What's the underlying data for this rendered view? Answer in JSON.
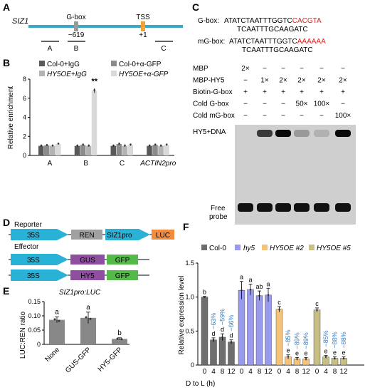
{
  "panel_letters": {
    "a": "A",
    "b": "B",
    "c": "C",
    "d": "D",
    "e": "E",
    "f": "F"
  },
  "panel_a": {
    "gene": "SIZ1",
    "gbox_label": "G-box",
    "gbox_pos": "−619",
    "tss_label": "TSS",
    "tss_pos": "+1",
    "regions": [
      "A",
      "B",
      "C"
    ]
  },
  "panel_b": {
    "ylabel": "Relative enrichment",
    "legend": [
      "Col-0+IgG",
      "Col-0+α-GFP",
      "HY5OE+IgG",
      "HY5OE+α-GFP"
    ],
    "significance": "**",
    "colors": [
      "#595959",
      "#8c8c8c",
      "#b3b3b3",
      "#d9d9d9"
    ],
    "chart_data": {
      "type": "bar",
      "categories": [
        "A",
        "B",
        "C",
        "ACTIN2pro"
      ],
      "series": [
        {
          "name": "Col-0+IgG",
          "values": [
            1.0,
            1.0,
            1.0,
            1.0
          ]
        },
        {
          "name": "Col-0+α-GFP",
          "values": [
            1.05,
            1.1,
            1.2,
            1.1
          ]
        },
        {
          "name": "HY5OE+IgG",
          "values": [
            1.0,
            1.0,
            1.0,
            1.0
          ]
        },
        {
          "name": "HY5OE+α-GFP",
          "values": [
            1.2,
            6.8,
            1.1,
            1.1
          ]
        }
      ],
      "ylim": [
        0,
        8
      ],
      "yticks": [
        0,
        2,
        4,
        6,
        8
      ]
    }
  },
  "panel_c": {
    "gbox_label": "G-box:",
    "gbox_top_black": "ATATCTAATTTGGTC",
    "gbox_top_red": "CACGTA",
    "gbox_bottom": "TCAATTTGCAAGATC",
    "mgbox_label": "mG-box:",
    "mgbox_top_black": "ATATCTAATTTGGTC",
    "mgbox_top_red": "AAAAAA",
    "mgbox_bottom": "TCAATTTGCAAGATC",
    "rows": [
      {
        "label": "MBP",
        "cells": [
          "2×",
          "−",
          "−",
          "−",
          "−",
          "−"
        ]
      },
      {
        "label": "MBP-HY5",
        "cells": [
          "−",
          "1×",
          "2×",
          "2×",
          "2×",
          "2×"
        ]
      },
      {
        "label": "Biotin-G-box",
        "cells": [
          "+",
          "+",
          "+",
          "+",
          "+",
          "+"
        ]
      },
      {
        "label": "Cold G-box",
        "cells": [
          "−",
          "−",
          "−",
          "50×",
          "100×",
          "−"
        ]
      },
      {
        "label": "Cold mG-box",
        "cells": [
          "−",
          "−",
          "−",
          "−",
          "−",
          "100×"
        ]
      }
    ],
    "hy5_dna": "HY5+DNA",
    "free_probe_1": "Free",
    "free_probe_2": "probe"
  },
  "panel_d": {
    "reporter_label": "Reporter",
    "effector_label": "Effector",
    "reporter": [
      "35S",
      "REN",
      "SIZ1pro",
      "LUC"
    ],
    "effector1": [
      "35S",
      "GUS",
      "GFP"
    ],
    "effector2": [
      "35S",
      "HY5",
      "GFP"
    ]
  },
  "panel_e": {
    "title": "SIZ1pro:LUC",
    "ylabel": "LUC:REN ratio",
    "letters": [
      "a",
      "a",
      "b"
    ],
    "chart_data": {
      "type": "bar",
      "categories": [
        "None",
        "GUS-GFP",
        "HY5-GFP"
      ],
      "values": [
        0.086,
        0.093,
        0.019
      ],
      "errors": [
        0.01,
        0.02,
        0.004
      ],
      "ylim": [
        0,
        0.15
      ],
      "yticks": [
        0,
        0.05,
        0.1,
        0.15
      ]
    }
  },
  "panel_f": {
    "ylabel": "Relative expression level",
    "xlabel": "D to L (h)",
    "legend": [
      "Col-0",
      "hy5",
      "HY5OE #2",
      "HY5OE #5"
    ],
    "colors": [
      "#6e6e6e",
      "#9999ee",
      "#f5c27a",
      "#c7bf84"
    ],
    "chart_data": {
      "type": "bar",
      "categories": [
        "0",
        "4",
        "8",
        "12"
      ],
      "series": [
        {
          "name": "Col-0",
          "values": [
            1.0,
            0.37,
            0.41,
            0.34
          ],
          "errors": [
            0.01,
            0.03,
            0.05,
            0.03
          ],
          "letters": [
            "b",
            "d",
            "d",
            "d"
          ],
          "percent": [
            "",
            "−63%",
            "−59%",
            "−66%"
          ]
        },
        {
          "name": "hy5",
          "values": [
            1.1,
            1.11,
            1.02,
            1.03
          ],
          "errors": [
            0.13,
            0.08,
            0.07,
            0.1
          ],
          "letters": [
            "a",
            "a",
            "ab",
            "a"
          ],
          "percent": [
            "",
            "",
            "",
            ""
          ]
        },
        {
          "name": "HY5OE #2",
          "values": [
            0.82,
            0.12,
            0.09,
            0.09
          ],
          "errors": [
            0.04,
            0.03,
            0.02,
            0.02
          ],
          "letters": [
            "c",
            "e",
            "e",
            "e"
          ],
          "percent": [
            "",
            "−85%",
            "−89%",
            "−89%"
          ]
        },
        {
          "name": "HY5OE #5",
          "values": [
            0.81,
            0.12,
            0.1,
            0.1
          ],
          "errors": [
            0.03,
            0.02,
            0.02,
            0.02
          ],
          "letters": [
            "c",
            "e",
            "e",
            "e"
          ],
          "percent": [
            "",
            "−85%",
            "−88%",
            "−88%"
          ]
        }
      ],
      "ylim": [
        0,
        1.5
      ],
      "yticks": [
        0,
        0.5,
        1.0,
        1.5
      ]
    }
  }
}
